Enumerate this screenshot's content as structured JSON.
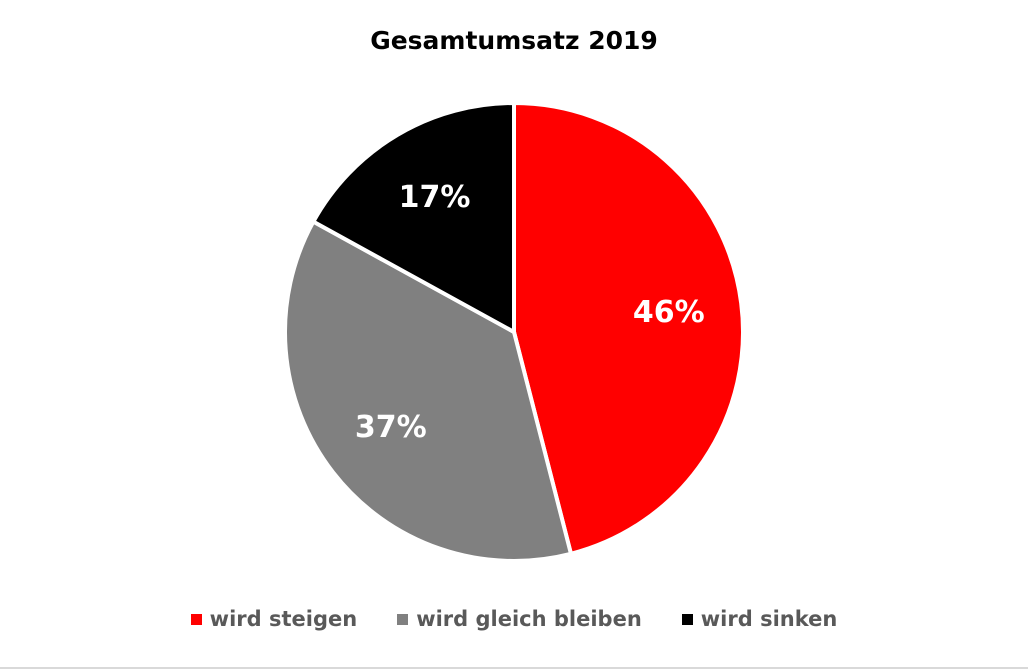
{
  "chart_data": {
    "type": "pie",
    "title": "Gesamtumsatz 2019",
    "categories": [
      "wird steigen",
      "wird gleich bleiben",
      "wird sinken"
    ],
    "values": [
      46,
      37,
      17
    ],
    "labels": [
      "46%",
      "37%",
      "17%"
    ],
    "colors": [
      "#ff0000",
      "#808080",
      "#000000"
    ],
    "legend": "bottom"
  }
}
